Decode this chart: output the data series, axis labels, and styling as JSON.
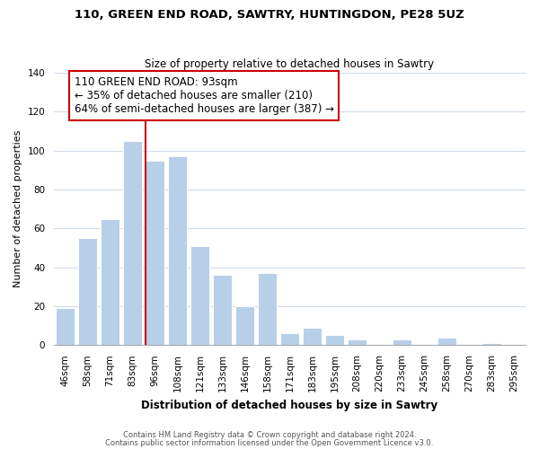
{
  "title": "110, GREEN END ROAD, SAWTRY, HUNTINGDON, PE28 5UZ",
  "subtitle": "Size of property relative to detached houses in Sawtry",
  "xlabel": "Distribution of detached houses by size in Sawtry",
  "ylabel": "Number of detached properties",
  "bar_labels": [
    "46sqm",
    "58sqm",
    "71sqm",
    "83sqm",
    "96sqm",
    "108sqm",
    "121sqm",
    "133sqm",
    "146sqm",
    "158sqm",
    "171sqm",
    "183sqm",
    "195sqm",
    "208sqm",
    "220sqm",
    "233sqm",
    "245sqm",
    "258sqm",
    "270sqm",
    "283sqm",
    "295sqm"
  ],
  "bar_values": [
    19,
    55,
    65,
    105,
    95,
    97,
    51,
    36,
    20,
    37,
    6,
    9,
    5,
    3,
    0,
    3,
    0,
    4,
    0,
    1,
    0
  ],
  "bar_color": "#b8cfe8",
  "property_line_label": "110 GREEN END ROAD: 93sqm",
  "annotation_line1": "← 35% of detached houses are smaller (210)",
  "annotation_line2": "64% of semi-detached houses are larger (387) →",
  "annotation_box_color": "#ffffff",
  "annotation_border_color": "#cc0000",
  "vline_color": "#cc0000",
  "vline_x_bar_index": 4,
  "ylim": [
    0,
    140
  ],
  "footer1": "Contains HM Land Registry data © Crown copyright and database right 2024.",
  "footer2": "Contains public sector information licensed under the Open Government Licence v3.0.",
  "bg_color": "#ffffff",
  "grid_color": "#d0dce8",
  "title_fontsize": 9.5,
  "subtitle_fontsize": 8.5,
  "ylabel_fontsize": 8,
  "xlabel_fontsize": 8.5,
  "tick_fontsize": 7.5,
  "footer_fontsize": 6.0,
  "annot_fontsize": 8.5
}
